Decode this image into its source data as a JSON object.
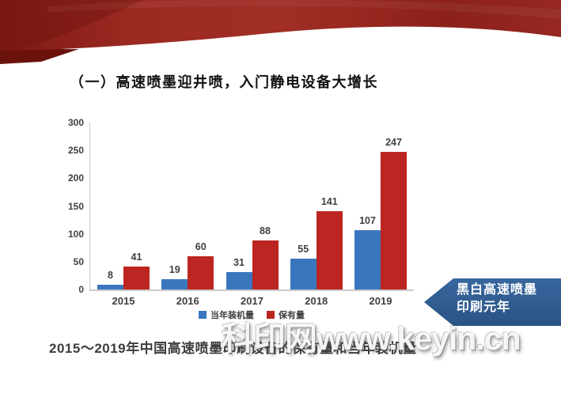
{
  "slide": {
    "title": "（一）高速喷墨迎井喷，入门静电设备大增长",
    "caption": "2015～2019年中国高速喷墨印刷设备的保有量和当年装机量",
    "watermark": "科印网www.keyin.cn",
    "ribbon_color": "#9C2A22",
    "callout": {
      "line1": "黑白高速喷墨",
      "line2": "印刷元年",
      "bg_color": "#2F5B8E",
      "text_color": "#FFFFFF"
    }
  },
  "chart_data": {
    "type": "bar",
    "categories": [
      "2015",
      "2016",
      "2017",
      "2018",
      "2019"
    ],
    "series": [
      {
        "name": "当年装机量",
        "color": "#3A76BD",
        "values": [
          8,
          19,
          31,
          55,
          107
        ]
      },
      {
        "name": "保有量",
        "color": "#BC2521",
        "values": [
          41,
          60,
          88,
          141,
          247
        ]
      }
    ],
    "title": "",
    "xlabel": "",
    "ylabel": "",
    "ylim": [
      0,
      300
    ],
    "yticks": [
      0,
      50,
      100,
      150,
      200,
      250,
      300
    ],
    "grid": false,
    "legend_position": "bottom",
    "value_labels": true,
    "axis_color": "#C9C9C9",
    "label_color": "#3F3F3F"
  }
}
